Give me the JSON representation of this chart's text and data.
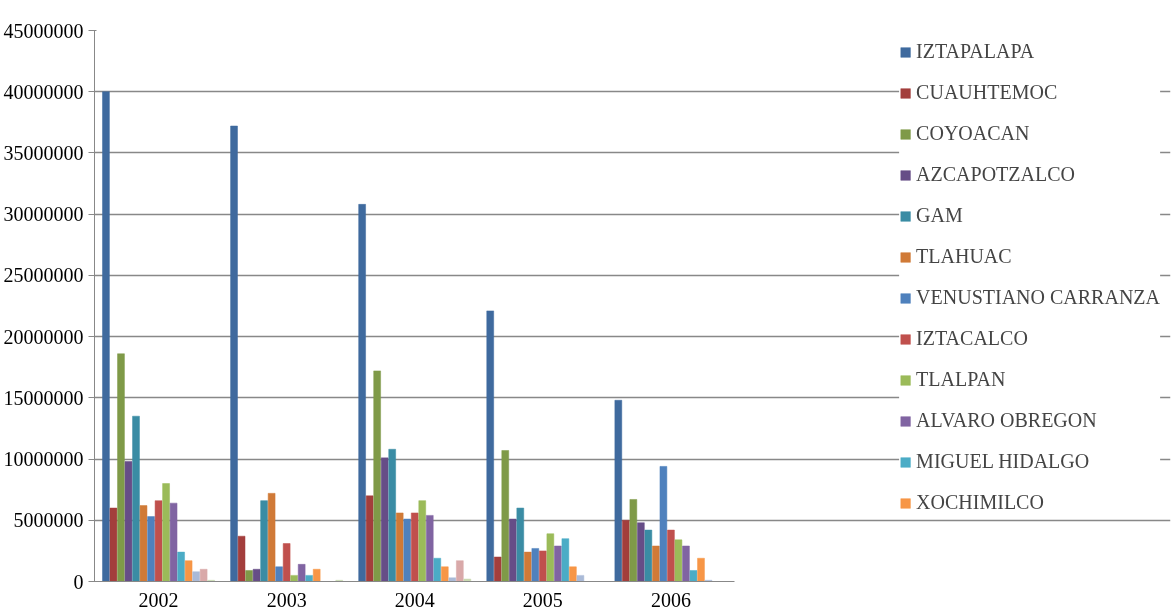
{
  "chart_data": {
    "type": "bar",
    "categories": [
      "2002",
      "2003",
      "2004",
      "2005",
      "2006"
    ],
    "series": [
      {
        "name": "IZTAPALAPA",
        "color": "#3f6a9e",
        "values": [
          40000000,
          37200000,
          30800000,
          22100000,
          14800000
        ]
      },
      {
        "name": "CUAUHTEMOC",
        "color": "#a33e3c",
        "values": [
          6000000,
          3700000,
          7000000,
          2000000,
          5000000
        ]
      },
      {
        "name": "COYOACAN",
        "color": "#7f9a48",
        "values": [
          18600000,
          900000,
          17200000,
          10700000,
          6700000
        ]
      },
      {
        "name": "AZCAPOTZALCO",
        "color": "#664d87",
        "values": [
          9800000,
          1000000,
          10100000,
          5100000,
          4800000
        ]
      },
      {
        "name": "GAM",
        "color": "#3a8ca4",
        "values": [
          13500000,
          6600000,
          10800000,
          6000000,
          4200000
        ]
      },
      {
        "name": "TLAHUAC",
        "color": "#d07a37",
        "values": [
          6200000,
          7200000,
          5600000,
          2400000,
          2900000
        ]
      },
      {
        "name": "VENUSTIANO CARRANZA",
        "color": "#4f81bd",
        "values": [
          5300000,
          1200000,
          5100000,
          2700000,
          9400000
        ]
      },
      {
        "name": "IZTACALCO",
        "color": "#c0504d",
        "values": [
          6600000,
          3100000,
          5600000,
          2500000,
          4200000
        ]
      },
      {
        "name": "TLALPAN",
        "color": "#9bbb59",
        "values": [
          8000000,
          500000,
          6600000,
          3900000,
          3400000
        ]
      },
      {
        "name": "ALVARO OBREGON",
        "color": "#8064a2",
        "values": [
          6400000,
          1400000,
          5400000,
          2900000,
          2900000
        ]
      },
      {
        "name": "MIGUEL HIDALGO",
        "color": "#4bacc6",
        "values": [
          2400000,
          500000,
          1900000,
          3500000,
          900000
        ]
      },
      {
        "name": "XOCHIMILCO",
        "color": "#f79646",
        "values": [
          1700000,
          1000000,
          1200000,
          1200000,
          1900000
        ]
      },
      {
        "color": "#aabad7",
        "values": [
          800000,
          0,
          300000,
          500000,
          100000
        ]
      },
      {
        "color": "#d9a9a9",
        "values": [
          1000000,
          0,
          1700000,
          0,
          0
        ]
      },
      {
        "color": "#c9d9b0",
        "values": [
          100000,
          100000,
          200000,
          0,
          0
        ]
      }
    ],
    "ylim": [
      0,
      45000000
    ],
    "yticks": [
      0,
      5000000,
      10000000,
      15000000,
      20000000,
      25000000,
      30000000,
      35000000,
      40000000,
      45000000
    ],
    "grid": "y",
    "legend": "right"
  }
}
